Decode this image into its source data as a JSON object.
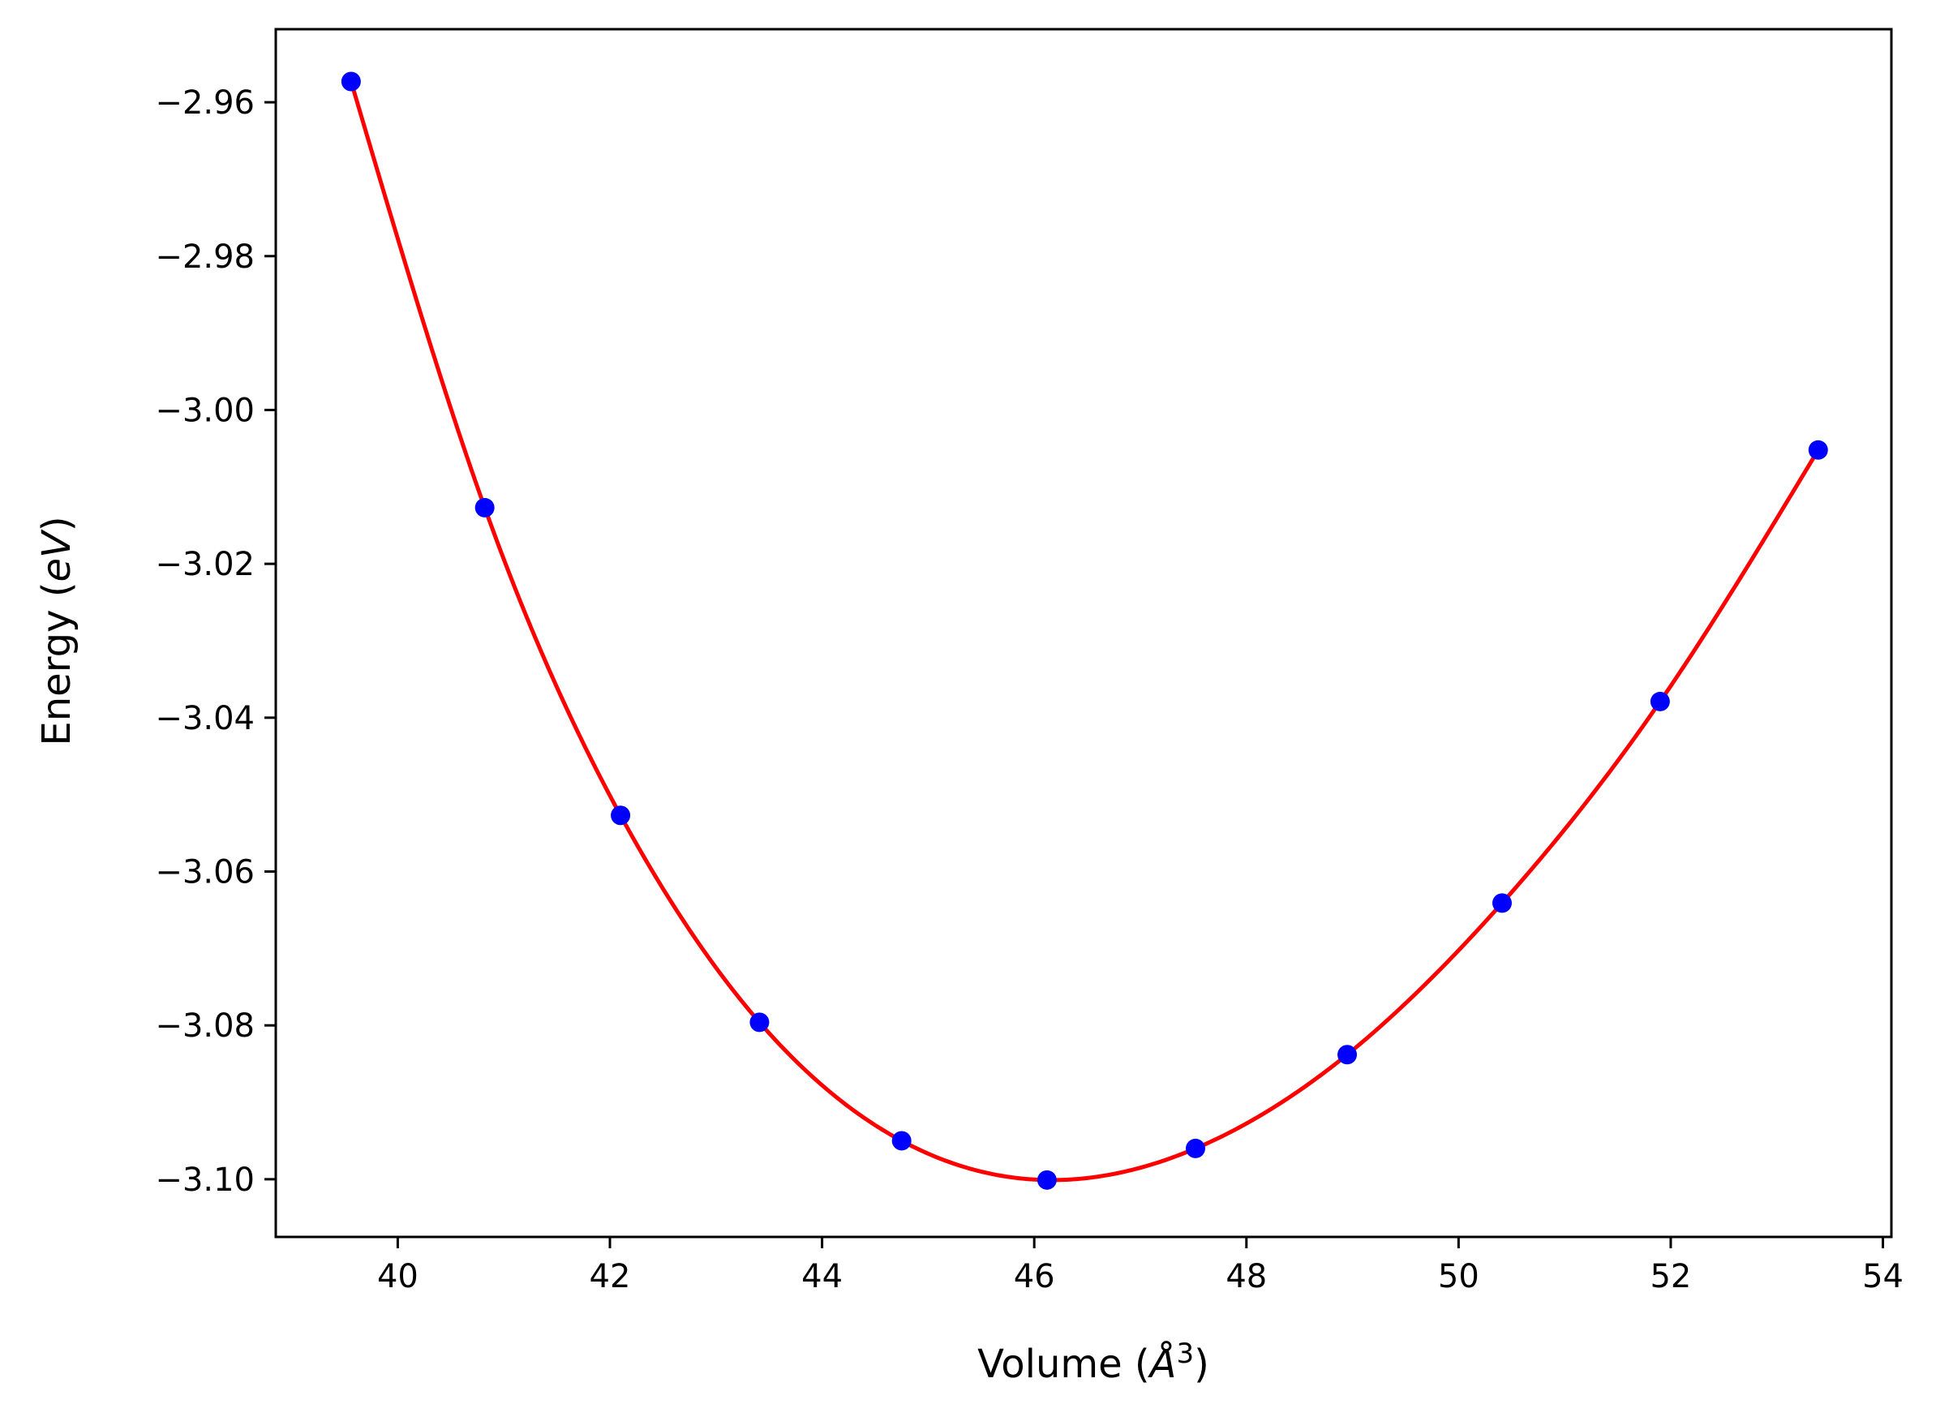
{
  "chart_data": {
    "type": "scatter",
    "xlabel": "Volume (",
    "xlabel_symbol": "Å",
    "xlabel_power": "3",
    "xlabel_close": ")",
    "ylabel": "Energy (",
    "ylabel_unit": "eV",
    "ylabel_close": ")",
    "xlim": [
      38.85,
      54.08
    ],
    "ylim": [
      -3.1075,
      -2.9505
    ],
    "xticks": [
      40,
      42,
      44,
      46,
      48,
      50,
      52,
      54
    ],
    "xtick_labels": [
      "40",
      "42",
      "44",
      "46",
      "48",
      "50",
      "52",
      "54"
    ],
    "yticks": [
      -2.96,
      -2.98,
      -3.0,
      -3.02,
      -3.04,
      -3.06,
      -3.08,
      -3.1
    ],
    "ytick_labels": [
      "−2.96",
      "−2.98",
      "−3.00",
      "−3.02",
      "−3.04",
      "−3.06",
      "−3.08",
      "−3.10"
    ],
    "grid": false,
    "series": [
      {
        "style": "markers",
        "color": "#0000ff",
        "x": [
          39.56,
          40.82,
          42.1,
          43.41,
          44.75,
          46.12,
          47.52,
          48.95,
          50.41,
          51.9,
          53.39
        ],
        "y": [
          -2.9573,
          -3.0127,
          -3.0527,
          -3.0796,
          -3.095,
          -3.1001,
          -3.096,
          -3.0838,
          -3.0641,
          -3.0379,
          -3.0052
        ]
      },
      {
        "style": "line",
        "color": "#ff0000",
        "fit": "cubic-spline",
        "x_range": [
          39.56,
          53.39
        ]
      }
    ]
  }
}
